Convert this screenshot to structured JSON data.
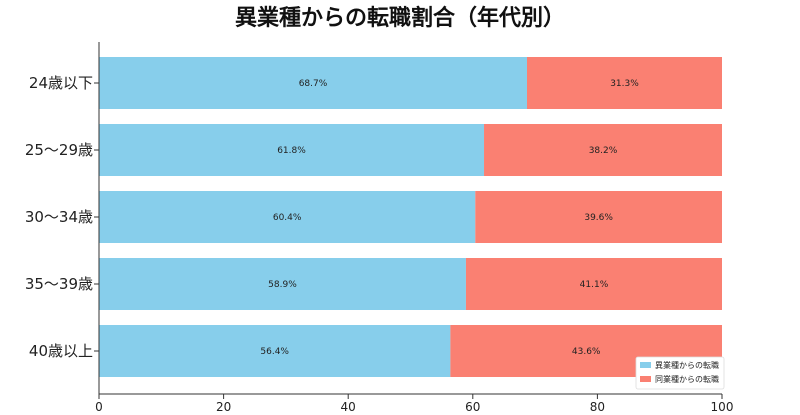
{
  "chart_data": {
    "type": "bar",
    "orientation": "horizontal",
    "stacked": true,
    "title": "異業種からの転職割合（年代別）",
    "categories": [
      "24歳以下",
      "25〜29歳",
      "30〜34歳",
      "35〜39歳",
      "40歳以上"
    ],
    "series": [
      {
        "name": "異業種からの転職",
        "color": "#87ceeb",
        "values": [
          68.7,
          61.8,
          60.4,
          58.9,
          56.4
        ],
        "labels": [
          "68.7%",
          "61.8%",
          "60.4%",
          "58.9%",
          "56.4%"
        ]
      },
      {
        "name": "同業種からの転職",
        "color": "#fa8072",
        "values": [
          31.3,
          38.2,
          39.6,
          41.1,
          43.6
        ],
        "labels": [
          "31.3%",
          "38.2%",
          "39.6%",
          "41.1%",
          "43.6%"
        ]
      }
    ],
    "xlim": [
      0,
      100
    ],
    "xticks": [
      "0",
      "20",
      "40",
      "60",
      "80",
      "100"
    ],
    "legend": "bottom-right",
    "grid": false
  }
}
